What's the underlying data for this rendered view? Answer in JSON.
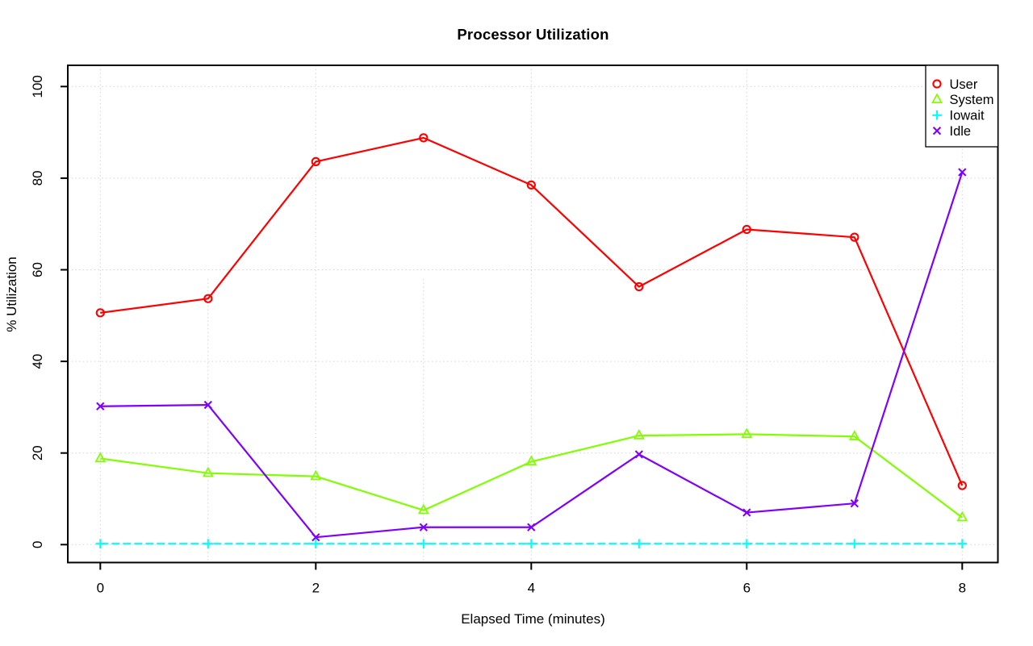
{
  "chart_data": {
    "type": "line",
    "title": "Processor Utilization",
    "xlabel": "Elapsed Time (minutes)",
    "ylabel": "% Utilization",
    "x": [
      0,
      1,
      2,
      3,
      4,
      5,
      6,
      7,
      8
    ],
    "xlim": [
      0,
      8
    ],
    "ylim": [
      0,
      100
    ],
    "x_ticks": [
      0,
      2,
      4,
      6,
      8
    ],
    "y_ticks": [
      0,
      20,
      40,
      60,
      80,
      100
    ],
    "grid": {
      "style": "dotted",
      "color": "#d4d4d4",
      "y_lines": [
        0,
        20,
        40,
        60,
        80,
        100
      ],
      "x_full": [
        0,
        2,
        4,
        6,
        8
      ],
      "x_partial": [
        {
          "x": 1,
          "y_from": 0,
          "y_to": 58
        },
        {
          "x": 3,
          "y_from": 0,
          "y_to": 58
        }
      ]
    },
    "legend": {
      "position": "top-right",
      "border": true,
      "entries": [
        "User",
        "System",
        "Iowait",
        "Idle"
      ]
    },
    "series": [
      {
        "name": "User",
        "color": "#FF0000",
        "marker": "circle",
        "line_style": "solid",
        "values": [
          50.6,
          53.7,
          83.6,
          88.8,
          78.5,
          56.3,
          68.8,
          67.1,
          12.9
        ]
      },
      {
        "name": "System",
        "color": "#80FF00",
        "marker": "triangle",
        "line_style": "solid",
        "values": [
          18.8,
          15.6,
          14.9,
          7.5,
          18.1,
          23.8,
          24.1,
          23.6,
          5.9
        ]
      },
      {
        "name": "Iowait",
        "color": "#00FFFF",
        "marker": "plus",
        "line_style": "dashed",
        "values": [
          0.2,
          0.2,
          0.2,
          0.2,
          0.2,
          0.2,
          0.2,
          0.2,
          0.2
        ]
      },
      {
        "name": "Idle",
        "color": "#8000FF",
        "marker": "x",
        "line_style": "solid",
        "values": [
          30.2,
          30.5,
          1.6,
          3.8,
          3.8,
          19.7,
          7.0,
          9.0,
          81.3
        ]
      }
    ]
  }
}
